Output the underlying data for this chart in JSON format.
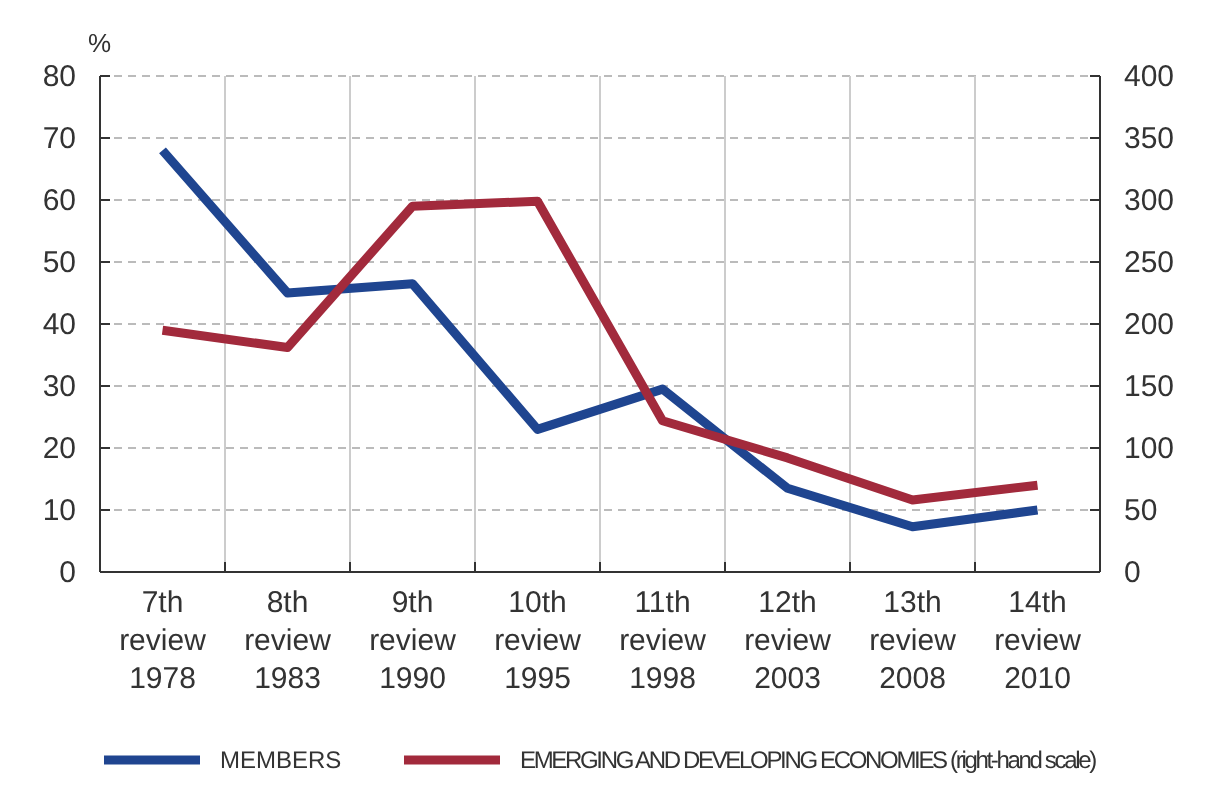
{
  "chart_data": {
    "type": "line",
    "ylabel": "%",
    "categories": [
      "7th review 1978",
      "8th review 1983",
      "9th review 1990",
      "10th review 1995",
      "11th review 1998",
      "12th review 2003",
      "13th review 2008",
      "14th review 2010"
    ],
    "series": [
      {
        "name": "MEMBERS",
        "color": "#1f4590",
        "values": [
          68,
          45,
          46.5,
          23,
          29.5,
          13.5,
          7.3,
          10
        ]
      },
      {
        "name": "EMERGING AND DEVELOPING ECONOMIES (right-hand scale)",
        "color": "#a22a3c",
        "axis": "y2",
        "values": [
          195,
          181,
          295,
          299,
          122,
          92,
          58,
          70
        ]
      }
    ],
    "ylim": [
      0,
      80
    ],
    "yticks": [
      0,
      10,
      20,
      30,
      40,
      50,
      60,
      70,
      80
    ],
    "y2lim": [
      0,
      400
    ],
    "y2ticks": [
      0,
      50,
      100,
      150,
      200,
      250,
      300,
      350,
      400
    ],
    "grid": true,
    "legend": "bottom"
  }
}
